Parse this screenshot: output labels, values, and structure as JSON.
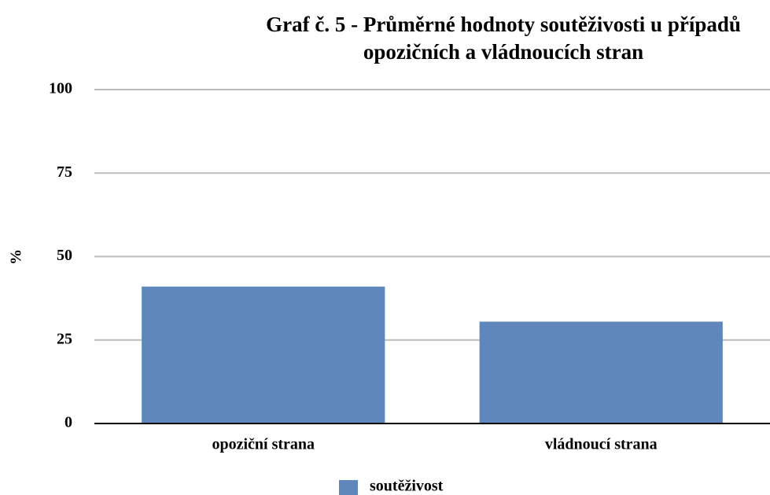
{
  "chart_data": {
    "type": "bar",
    "title": "Graf č. 5 - Průměrné hodnoty soutěživosti u případů opozičních a vládnoucích stran",
    "y_label": "%",
    "categories": [
      "opoziční strana",
      "vládnoucí strana"
    ],
    "series": [
      {
        "name": "soutěživost",
        "color": "#5f87bb",
        "values": [
          41,
          30.5
        ]
      }
    ],
    "ylim": [
      0,
      100
    ],
    "yticks": [
      0,
      25,
      50,
      75,
      100
    ],
    "grid": true,
    "legend": "bottom"
  }
}
